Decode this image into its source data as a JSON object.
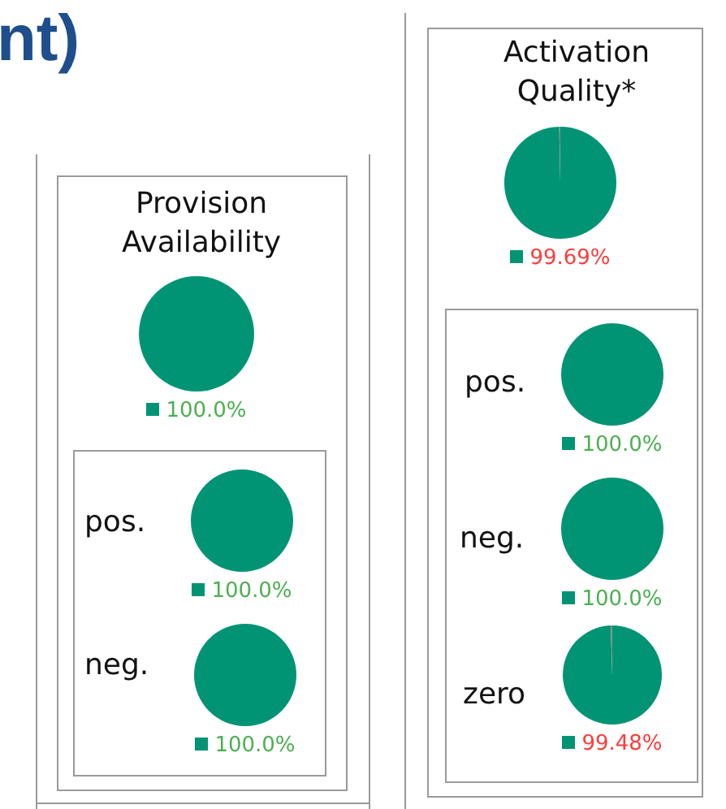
{
  "chart_data": [
    {
      "type": "pie",
      "title": "Provision Availability",
      "annotations": [
        "nt)"
      ],
      "categories": [
        null
      ],
      "values": [
        100
      ],
      "colors": [
        "#009474"
      ],
      "value_labels": [
        "100.0%"
      ]
    },
    {
      "type": "pie",
      "title": "pos.",
      "categories": [
        null
      ],
      "values": [
        100
      ],
      "colors": [
        "#009474"
      ],
      "value_labels": [
        "100.0%"
      ]
    },
    {
      "type": "pie",
      "title": "neg.",
      "categories": [
        null
      ],
      "values": [
        100
      ],
      "colors": [
        "#009474"
      ],
      "value_labels": [
        "100.0%"
      ]
    },
    {
      "type": "pie",
      "title": "Activation Quality*",
      "categories": [
        null,
        null
      ],
      "values": [
        99.69,
        0.31
      ],
      "colors": [
        "#009474",
        "#8a8a8a"
      ],
      "value_labels": [
        "99.69%",
        null
      ]
    },
    {
      "type": "pie",
      "title": "pos.",
      "categories": [
        null
      ],
      "values": [
        100
      ],
      "colors": [
        "#009474"
      ],
      "value_labels": [
        "100.0%"
      ]
    },
    {
      "type": "pie",
      "title": "neg.",
      "categories": [
        null
      ],
      "values": [
        100
      ],
      "colors": [
        "#009474"
      ],
      "value_labels": [
        "100.0%"
      ]
    },
    {
      "type": "pie",
      "title": "zero",
      "categories": [
        null,
        null
      ],
      "values": [
        99.48,
        0.52
      ],
      "colors": [
        "#009474",
        "#8a8a8a"
      ],
      "value_labels": [
        "99.48%",
        null
      ]
    }
  ]
}
